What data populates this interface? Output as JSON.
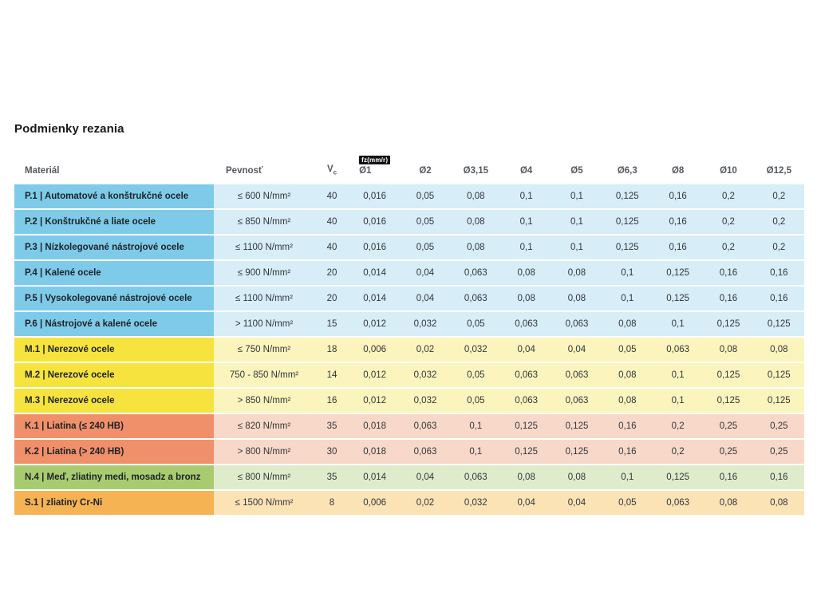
{
  "page": {
    "title": "Podmienky rezania"
  },
  "table": {
    "headers": {
      "material": "Materiál",
      "pevnost": "Pevnosť",
      "vc_base": "V",
      "vc_sub": "c",
      "fz_badge": "fz(mm/r)",
      "diameters": [
        "Ø1",
        "Ø2",
        "Ø3,15",
        "Ø4",
        "Ø5",
        "Ø6,3",
        "Ø8",
        "Ø10",
        "Ø12,5"
      ]
    },
    "colors": {
      "P": {
        "label": "#7ecbe9",
        "cell": "#d7edf8"
      },
      "M": {
        "label": "#f7e33d",
        "cell": "#fbf4bd"
      },
      "K": {
        "label": "#f0906a",
        "cell": "#f8d9c9"
      },
      "N": {
        "label": "#a9cb70",
        "cell": "#dfeccb"
      },
      "S": {
        "label": "#f5b354",
        "cell": "#fbe3b6"
      }
    },
    "rows": [
      {
        "id": "p1",
        "group": "P",
        "material": "P.1 | Automatové a konštrukčné ocele",
        "pevnost": "≤ 600 N/mm²",
        "vc": "40",
        "values": [
          "0,016",
          "0,05",
          "0,08",
          "0,1",
          "0,1",
          "0,125",
          "0,16",
          "0,2",
          "0,2"
        ]
      },
      {
        "id": "p2",
        "group": "P",
        "material": "P.2 | Konštrukčné a liate ocele",
        "pevnost": "≤ 850 N/mm²",
        "vc": "40",
        "values": [
          "0,016",
          "0,05",
          "0,08",
          "0,1",
          "0,1",
          "0,125",
          "0,16",
          "0,2",
          "0,2"
        ]
      },
      {
        "id": "p3",
        "group": "P",
        "material": "P.3 | Nízkolegované nástrojové ocele",
        "pevnost": "≤ 1100 N/mm²",
        "vc": "40",
        "values": [
          "0,016",
          "0,05",
          "0,08",
          "0,1",
          "0,1",
          "0,125",
          "0,16",
          "0,2",
          "0,2"
        ]
      },
      {
        "id": "p4",
        "group": "P",
        "material": "P.4 | Kalené ocele",
        "pevnost": "≤ 900 N/mm²",
        "vc": "20",
        "values": [
          "0,014",
          "0,04",
          "0,063",
          "0,08",
          "0,08",
          "0,1",
          "0,125",
          "0,16",
          "0,16"
        ]
      },
      {
        "id": "p5",
        "group": "P",
        "material": "P.5 | Vysokolegované nástrojové ocele",
        "pevnost": "≤ 1100 N/mm²",
        "vc": "20",
        "values": [
          "0,014",
          "0,04",
          "0,063",
          "0,08",
          "0,08",
          "0,1",
          "0,125",
          "0,16",
          "0,16"
        ]
      },
      {
        "id": "p6",
        "group": "P",
        "material": "P.6 | Nástrojové a kalené ocele",
        "pevnost": "> 1100 N/mm²",
        "vc": "15",
        "values": [
          "0,012",
          "0,032",
          "0,05",
          "0,063",
          "0,063",
          "0,08",
          "0,1",
          "0,125",
          "0,125"
        ]
      },
      {
        "id": "m1",
        "group": "M",
        "material": "M.1 | Nerezové ocele",
        "pevnost": "≤ 750 N/mm²",
        "vc": "18",
        "values": [
          "0,006",
          "0,02",
          "0,032",
          "0,04",
          "0,04",
          "0,05",
          "0,063",
          "0,08",
          "0,08"
        ]
      },
      {
        "id": "m2",
        "group": "M",
        "material": "M.2 | Nerezové ocele",
        "pevnost": "750 - 850 N/mm²",
        "vc": "14",
        "values": [
          "0,012",
          "0,032",
          "0,05",
          "0,063",
          "0,063",
          "0,08",
          "0,1",
          "0,125",
          "0,125"
        ]
      },
      {
        "id": "m3",
        "group": "M",
        "material": "M.3 | Nerezové ocele",
        "pevnost": "> 850 N/mm²",
        "vc": "16",
        "values": [
          "0,012",
          "0,032",
          "0,05",
          "0,063",
          "0,063",
          "0,08",
          "0,1",
          "0,125",
          "0,125"
        ]
      },
      {
        "id": "k1",
        "group": "K",
        "material": "K.1 | Liatina (≤ 240 HB)",
        "pevnost": "≤ 820 N/mm²",
        "vc": "35",
        "values": [
          "0,018",
          "0,063",
          "0,1",
          "0,125",
          "0,125",
          "0,16",
          "0,2",
          "0,25",
          "0,25"
        ]
      },
      {
        "id": "k2",
        "group": "K",
        "material": "K.2 | Liatina (> 240 HB)",
        "pevnost": "> 800 N/mm²",
        "vc": "30",
        "values": [
          "0,018",
          "0,063",
          "0,1",
          "0,125",
          "0,125",
          "0,16",
          "0,2",
          "0,25",
          "0,25"
        ]
      },
      {
        "id": "n4",
        "group": "N",
        "material": "N.4 | Meď, zliatiny medi, mosadz a bronz",
        "pevnost": "≤ 800 N/mm²",
        "vc": "35",
        "values": [
          "0,014",
          "0,04",
          "0,063",
          "0,08",
          "0,08",
          "0,1",
          "0,125",
          "0,16",
          "0,16"
        ]
      },
      {
        "id": "s1",
        "group": "S",
        "material": "S.1 | zliatiny Cr-Ni",
        "pevnost": "≤ 1500 N/mm²",
        "vc": "8",
        "values": [
          "0,006",
          "0,02",
          "0,032",
          "0,04",
          "0,04",
          "0,05",
          "0,063",
          "0,08",
          "0,08"
        ]
      }
    ]
  }
}
